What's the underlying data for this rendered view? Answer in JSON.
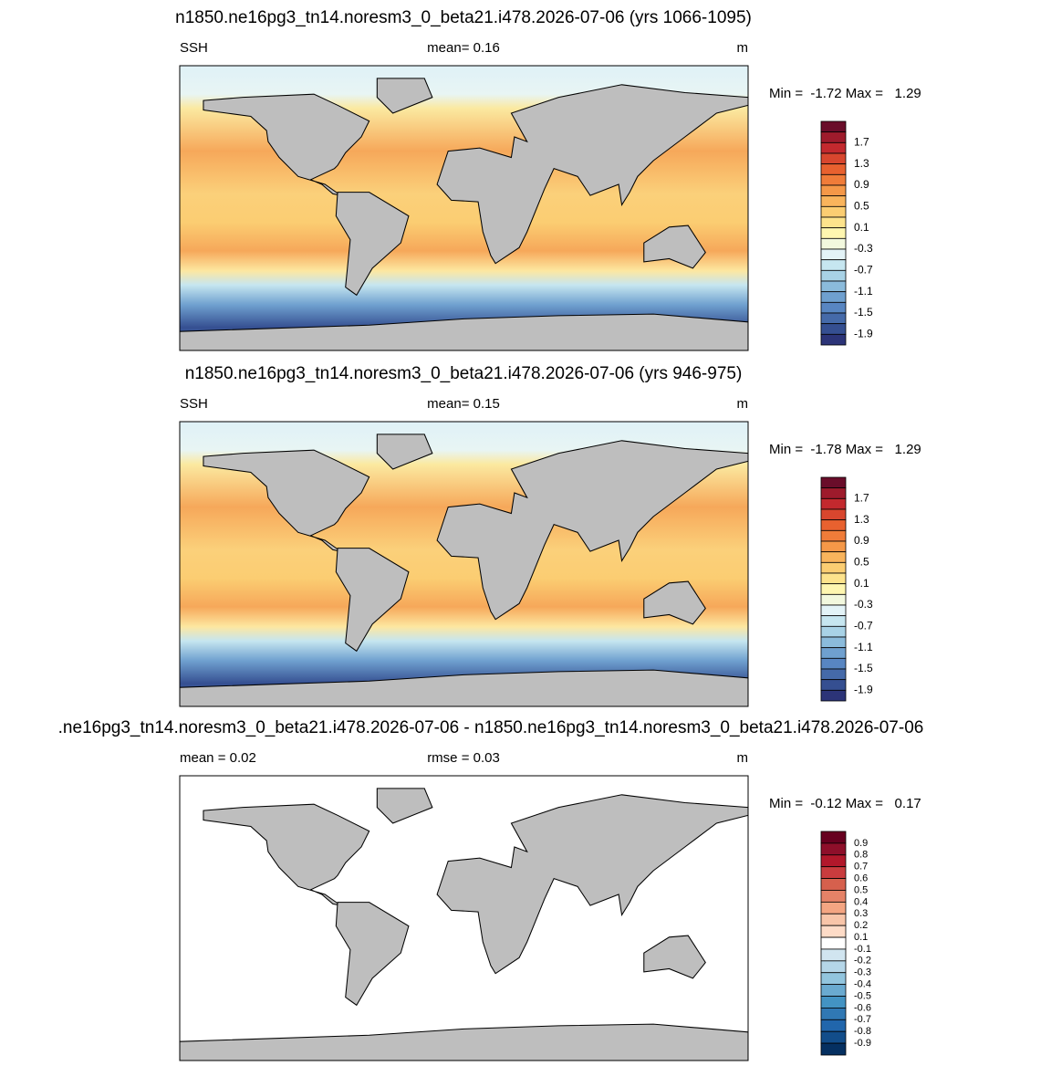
{
  "panels": [
    {
      "title": "n1850.ne16pg3_tn14.noresm3_0_beta21.i478.2026-07-06 (yrs 1066-1095)",
      "left_label": "SSH",
      "center_label": "mean=   0.16",
      "right_label": "m",
      "stats": "Min =  -1.72 Max =   1.29",
      "colorbar": {
        "labels": [
          1.7,
          1.3,
          0.9,
          0.5,
          0.1,
          -0.3,
          -0.7,
          -1.1,
          -1.5,
          -1.9
        ],
        "colors": [
          "#6a0d2a",
          "#9e1b2c",
          "#c3292e",
          "#d8462e",
          "#e8612f",
          "#f07c39",
          "#f59848",
          "#f9b45c",
          "#fbcd72",
          "#fde38c",
          "#fef6b0",
          "#f2f8de",
          "#e3f3f7",
          "#c6e6f0",
          "#a8d2e6",
          "#8bbbdb",
          "#6fa0cf",
          "#5886c2",
          "#456aa9",
          "#354f91",
          "#2c3478"
        ]
      }
    },
    {
      "title": "n1850.ne16pg3_tn14.noresm3_0_beta21.i478.2026-07-06 (yrs 946-975)",
      "left_label": "SSH",
      "center_label": "mean=   0.15",
      "right_label": "m",
      "stats": "Min =  -1.78 Max =   1.29",
      "colorbar": {
        "labels": [
          1.7,
          1.3,
          0.9,
          0.5,
          0.1,
          -0.3,
          -0.7,
          -1.1,
          -1.5,
          -1.9
        ],
        "colors": [
          "#6a0d2a",
          "#9e1b2c",
          "#c3292e",
          "#d8462e",
          "#e8612f",
          "#f07c39",
          "#f59848",
          "#f9b45c",
          "#fbcd72",
          "#fde38c",
          "#fef6b0",
          "#f2f8de",
          "#e3f3f7",
          "#c6e6f0",
          "#a8d2e6",
          "#8bbbdb",
          "#6fa0cf",
          "#5886c2",
          "#456aa9",
          "#354f91",
          "#2c3478"
        ]
      }
    },
    {
      "title": ".ne16pg3_tn14.noresm3_0_beta21.i478.2026-07-06 - n1850.ne16pg3_tn14.noresm3_0_beta21.i478.2026-07-06",
      "left_label": "mean =   0.02",
      "center_label": "rmse =   0.03",
      "right_label": "m",
      "stats": "Min =  -0.12 Max =   0.17",
      "colorbar": {
        "labels": [
          0.9,
          0.8,
          0.7,
          0.6,
          0.5,
          0.4,
          0.3,
          0.2,
          0.1,
          -0.1,
          -0.2,
          -0.3,
          -0.4,
          -0.5,
          -0.6,
          -0.7,
          -0.8,
          -0.9
        ],
        "colors": [
          "#67001f",
          "#8e0f2a",
          "#b2182b",
          "#c93c3e",
          "#d6604d",
          "#e58267",
          "#f4a582",
          "#f8c5a9",
          "#fddbc7",
          "#ffffff",
          "#d1e5f0",
          "#b5d6e8",
          "#92c5de",
          "#6aaad0",
          "#4393c3",
          "#3078b4",
          "#2166ac",
          "#124d8a",
          "#053061"
        ]
      }
    }
  ]
}
